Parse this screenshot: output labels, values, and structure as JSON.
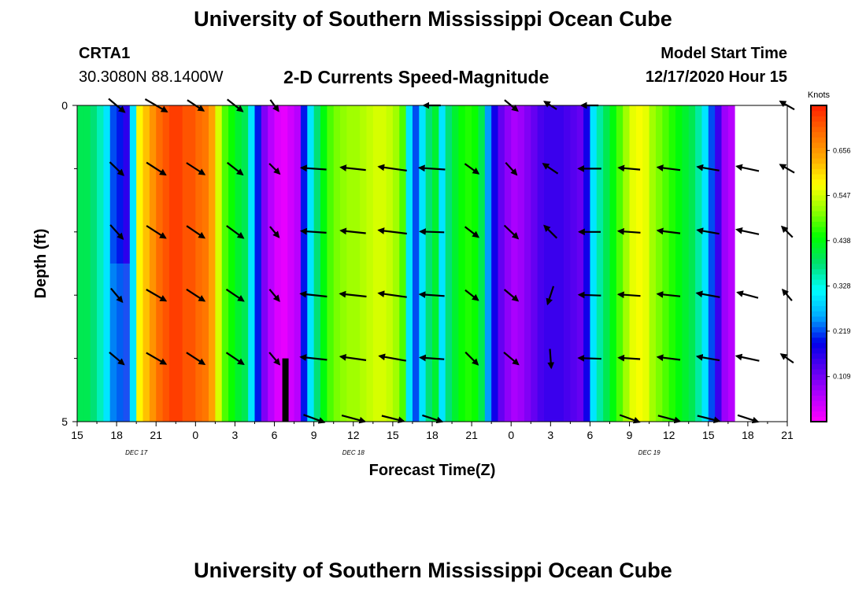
{
  "page": {
    "title_top": "University of Southern Mississippi Ocean Cube",
    "title_bottom": "University of Southern Mississippi Ocean Cube",
    "station_id": "CRTA1",
    "station_coords": "30.3080N 88.1400W",
    "model_start_label": "Model Start Time",
    "model_start_value": "12/17/2020 Hour 15"
  },
  "colors": {
    "scale": [
      "#ff00ff",
      "#b400ff",
      "#5a00f0",
      "#0000e8",
      "#00aaff",
      "#00ffff",
      "#00e070",
      "#00ff00",
      "#90ff00",
      "#ffff00",
      "#ffaa00",
      "#ff6a00",
      "#ff2000"
    ],
    "arrow": "#000000",
    "frame": "#000000",
    "background": "#ffffff"
  },
  "chart_data": {
    "type": "heatmap",
    "title": "2-D Currents Speed-Magnitude",
    "xlabel": "Forecast Time(Z)",
    "ylabel": "Depth (ft)",
    "x_start_hour": 15,
    "x_end_hour": 69,
    "x_ticks": [
      {
        "hour": 15,
        "label": "15"
      },
      {
        "hour": 18,
        "label": "18"
      },
      {
        "hour": 21,
        "label": "21"
      },
      {
        "hour": 24,
        "label": "0"
      },
      {
        "hour": 27,
        "label": "3"
      },
      {
        "hour": 30,
        "label": "6"
      },
      {
        "hour": 33,
        "label": "9"
      },
      {
        "hour": 36,
        "label": "12"
      },
      {
        "hour": 39,
        "label": "15"
      },
      {
        "hour": 42,
        "label": "18"
      },
      {
        "hour": 45,
        "label": "21"
      },
      {
        "hour": 48,
        "label": "0"
      },
      {
        "hour": 51,
        "label": "3"
      },
      {
        "hour": 54,
        "label": "6"
      },
      {
        "hour": 57,
        "label": "9"
      },
      {
        "hour": 60,
        "label": "12"
      },
      {
        "hour": 63,
        "label": "15"
      },
      {
        "hour": 66,
        "label": "18"
      },
      {
        "hour": 69,
        "label": "21"
      }
    ],
    "date_labels": [
      {
        "hour": 19.5,
        "label": "DEC 17"
      },
      {
        "hour": 36,
        "label": "DEC 18"
      },
      {
        "hour": 58.5,
        "label": "DEC 19"
      }
    ],
    "y_range": [
      0,
      5
    ],
    "y_ticks": [
      {
        "value": 0,
        "label": "0"
      },
      {
        "value": 5,
        "label": "5"
      }
    ],
    "y_minor_ticks": [
      1,
      2,
      3,
      4
    ],
    "colorbar": {
      "unit": "Knots",
      "min": 0,
      "max": 0.765,
      "ticks": [
        0.109,
        0.219,
        0.328,
        0.438,
        0.547,
        0.656
      ],
      "tick_labels": [
        "0.109",
        "0.219",
        "0.328",
        "0.438",
        "0.547",
        "0.656"
      ]
    },
    "speed_columns": {
      "start_hour": 15,
      "step_hours": 0.5,
      "values": [
        0.4,
        0.4,
        0.38,
        0.35,
        0.3,
        0.22,
        0.2,
        0.16,
        0.3,
        0.58,
        0.62,
        0.66,
        0.7,
        0.72,
        0.74,
        0.74,
        0.72,
        0.72,
        0.7,
        0.68,
        0.62,
        0.55,
        0.48,
        0.45,
        0.42,
        0.4,
        0.3,
        0.2,
        0.1,
        0.06,
        0.03,
        0.02,
        0.04,
        0.06,
        0.2,
        0.3,
        0.38,
        0.44,
        0.48,
        0.5,
        0.51,
        0.52,
        0.52,
        0.53,
        0.54,
        0.55,
        0.55,
        0.54,
        0.52,
        0.48,
        0.3,
        0.22,
        0.3,
        0.38,
        0.42,
        0.3,
        0.38,
        0.42,
        0.45,
        0.46,
        0.45,
        0.4,
        0.25,
        0.18,
        0.12,
        0.09,
        0.07,
        0.08,
        0.1,
        0.12,
        0.14,
        0.15,
        0.15,
        0.15,
        0.14,
        0.13,
        0.12,
        0.18,
        0.3,
        0.36,
        0.4,
        0.44,
        0.48,
        0.52,
        0.56,
        0.57,
        0.56,
        0.52,
        0.5,
        0.48,
        0.46,
        0.44,
        0.42,
        0.4,
        0.36,
        0.3,
        0.22,
        0.15,
        0.08,
        0.06
      ],
      "dark_cells": [
        {
          "hour_from": 24.5,
          "hour_to": 25.5,
          "depth_from": 0,
          "depth_to": 5,
          "value": 0.7
        },
        {
          "hour_from": 17.5,
          "hour_to": 19.5,
          "depth_from": 2.5,
          "depth_to": 5,
          "value": 0.3
        }
      ]
    },
    "vectors": {
      "depths": [
        0,
        1,
        2,
        3,
        4,
        5
      ],
      "rows": [
        {
          "depth": 0,
          "items": [
            [
              18,
              -40,
              0.33
            ],
            [
              21,
              -30,
              0.4
            ],
            [
              24,
              -33,
              0.31
            ],
            [
              27,
              -38,
              0.31
            ],
            [
              30,
              -54,
              0.22
            ],
            [
              33,
              0,
              0
            ],
            [
              36,
              0,
              0
            ],
            [
              39,
              0,
              0
            ],
            [
              42,
              180,
              0.27
            ],
            [
              45,
              0,
              0
            ],
            [
              48,
              -40,
              0.27
            ],
            [
              51,
              148,
              0.23
            ],
            [
              54,
              180,
              0.27
            ],
            [
              57,
              0,
              0
            ],
            [
              60,
              0,
              0
            ],
            [
              63,
              0,
              0
            ],
            [
              66,
              0,
              0
            ],
            [
              69,
              150,
              0.26
            ]
          ]
        },
        {
          "depth": 1,
          "items": [
            [
              18,
              -44,
              0.3
            ],
            [
              21,
              -33,
              0.36
            ],
            [
              24,
              -33,
              0.34
            ],
            [
              27,
              -38,
              0.31
            ],
            [
              30,
              -45,
              0.23
            ],
            [
              33,
              176,
              0.4
            ],
            [
              36,
              174,
              0.4
            ],
            [
              39,
              172,
              0.45
            ],
            [
              42,
              176,
              0.41
            ],
            [
              45,
              -36,
              0.27
            ],
            [
              48,
              -48,
              0.26
            ],
            [
              51,
              146,
              0.28
            ],
            [
              54,
              180,
              0.36
            ],
            [
              57,
              175,
              0.34
            ],
            [
              60,
              173,
              0.36
            ],
            [
              63,
              170,
              0.35
            ],
            [
              66,
              168,
              0.36
            ],
            [
              69,
              150,
              0.26
            ]
          ]
        },
        {
          "depth": 2,
          "items": [
            [
              18,
              -48,
              0.3
            ],
            [
              21,
              -33,
              0.36
            ],
            [
              24,
              -34,
              0.34
            ],
            [
              27,
              -36,
              0.33
            ],
            [
              30,
              -50,
              0.22
            ],
            [
              33,
              176,
              0.4
            ],
            [
              36,
              174,
              0.4
            ],
            [
              39,
              173,
              0.45
            ],
            [
              42,
              178,
              0.38
            ],
            [
              45,
              -38,
              0.27
            ],
            [
              48,
              -44,
              0.3
            ],
            [
              51,
              135,
              0.28
            ],
            [
              54,
              180,
              0.34
            ],
            [
              57,
              176,
              0.35
            ],
            [
              60,
              173,
              0.36
            ],
            [
              63,
              170,
              0.35
            ],
            [
              66,
              168,
              0.36
            ],
            [
              69,
              135,
              0.24
            ]
          ]
        },
        {
          "depth": 3,
          "items": [
            [
              18,
              -50,
              0.28
            ],
            [
              21,
              -30,
              0.36
            ],
            [
              24,
              -33,
              0.34
            ],
            [
              27,
              -34,
              0.33
            ],
            [
              30,
              -50,
              0.24
            ],
            [
              33,
              174,
              0.42
            ],
            [
              36,
              174,
              0.42
            ],
            [
              39,
              172,
              0.45
            ],
            [
              42,
              176,
              0.39
            ],
            [
              45,
              -38,
              0.26
            ],
            [
              48,
              -40,
              0.28
            ],
            [
              51,
              -108,
              0.3
            ],
            [
              54,
              178,
              0.35
            ],
            [
              57,
              176,
              0.35
            ],
            [
              60,
              174,
              0.36
            ],
            [
              63,
              170,
              0.37
            ],
            [
              66,
              165,
              0.34
            ],
            [
              69,
              130,
              0.23
            ]
          ]
        },
        {
          "depth": 4,
          "items": [
            [
              18,
              -40,
              0.3
            ],
            [
              21,
              -30,
              0.36
            ],
            [
              24,
              -33,
              0.34
            ],
            [
              27,
              -34,
              0.33
            ],
            [
              30,
              -50,
              0.25
            ],
            [
              33,
              174,
              0.42
            ],
            [
              36,
              172,
              0.41
            ],
            [
              39,
              170,
              0.43
            ],
            [
              42,
              176,
              0.38
            ],
            [
              45,
              -45,
              0.28
            ],
            [
              48,
              -40,
              0.3
            ],
            [
              51,
              -86,
              0.3
            ],
            [
              54,
              178,
              0.36
            ],
            [
              57,
              176,
              0.34
            ],
            [
              60,
              173,
              0.36
            ],
            [
              63,
              170,
              0.36
            ],
            [
              66,
              168,
              0.37
            ],
            [
              69,
              145,
              0.24
            ]
          ]
        },
        {
          "depth": 5,
          "items": [
            [
              33,
              -20,
              0.35
            ],
            [
              36,
              -15,
              0.38
            ],
            [
              39,
              -14,
              0.36
            ],
            [
              42,
              -18,
              0.33
            ],
            [
              57,
              -20,
              0.33
            ],
            [
              60,
              -15,
              0.36
            ],
            [
              63,
              -14,
              0.36
            ],
            [
              66,
              -18,
              0.34
            ]
          ]
        }
      ]
    }
  }
}
